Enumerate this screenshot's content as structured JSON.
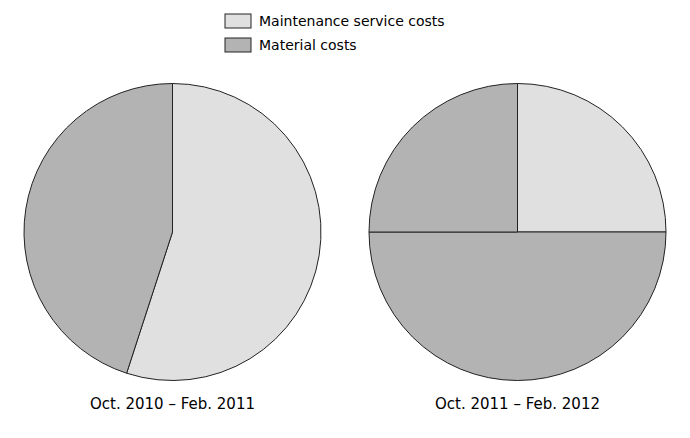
{
  "chart_data": [
    {
      "type": "pie",
      "title": "Oct. 2010 – Feb. 2011",
      "categories": [
        "Maintenance service costs",
        "Material costs"
      ],
      "values": [
        55,
        45
      ],
      "colors": [
        "#e0e0e0",
        "#b3b3b3"
      ],
      "legend": "top"
    },
    {
      "type": "pie",
      "title": "Oct. 2011 – Feb. 2012",
      "categories": [
        "Maintenance service costs",
        "Material costs",
        "Material costs"
      ],
      "values": [
        25,
        50,
        25
      ],
      "colors": [
        "#e0e0e0",
        "#b3b3b3",
        "#b3b3b3"
      ],
      "legend": "top"
    }
  ]
}
